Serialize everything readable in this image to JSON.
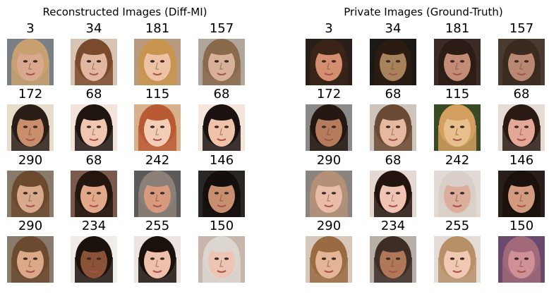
{
  "panels": [
    {
      "title": "Reconstructed Images (Diff-MI)",
      "grid": [
        [
          {
            "label": "3",
            "bg": "#7a7f86",
            "skin": "#d9a88e",
            "hair": "#c9a170"
          },
          {
            "label": "34",
            "bg": "#d8c4b4",
            "skin": "#e2b7a0",
            "hair": "#7a4a2c"
          },
          {
            "label": "181",
            "bg": "#b89a80",
            "skin": "#eec2a4",
            "hair": "#c8954f"
          },
          {
            "label": "157",
            "bg": "#b0a69c",
            "skin": "#d9b09a",
            "hair": "#8a6a4c"
          }
        ],
        [
          {
            "label": "172",
            "bg": "#e8dccd",
            "skin": "#c98f6c",
            "hair": "#2a1d16"
          },
          {
            "label": "68",
            "bg": "#f2e4da",
            "skin": "#f0c6b0",
            "hair": "#1e1410"
          },
          {
            "label": "115",
            "bg": "#d9b08c",
            "skin": "#f3cdb8",
            "hair": "#b85a34"
          },
          {
            "label": "68",
            "bg": "#f4e6dc",
            "skin": "#efc2aa",
            "hair": "#1a1210"
          }
        ],
        [
          {
            "label": "290",
            "bg": "#8a7a6c",
            "skin": "#d8a98a",
            "hair": "#6b4a30"
          },
          {
            "label": "68",
            "bg": "#7a5a4c",
            "skin": "#e2a88a",
            "hair": "#24160f"
          },
          {
            "label": "242",
            "bg": "#5c5a58",
            "skin": "#d89a7e",
            "hair": "#8a8078"
          },
          {
            "label": "146",
            "bg": "#2a2624",
            "skin": "#c88e70",
            "hair": "#140e0c"
          }
        ],
        [
          {
            "label": "290",
            "bg": "#8a7a6c",
            "skin": "#dba888",
            "hair": "#6b4a30"
          },
          {
            "label": "234",
            "bg": "#f0ece8",
            "skin": "#8a5236",
            "hair": "#1c120c"
          },
          {
            "label": "255",
            "bg": "#ece4e0",
            "skin": "#efc0ac",
            "hair": "#1a100c"
          },
          {
            "label": "150",
            "bg": "#c8b6ac",
            "skin": "#eec4b4",
            "hair": "#dcd6d0"
          }
        ]
      ]
    },
    {
      "title": "Private Images (Ground-Truth)",
      "grid": [
        [
          {
            "label": "3",
            "bg": "#2a1e18",
            "skin": "#d48e70",
            "hair": "#3a2418"
          },
          {
            "label": "34",
            "bg": "#1c1814",
            "skin": "#a8825a",
            "hair": "#2a1c12"
          },
          {
            "label": "181",
            "bg": "#3c2a24",
            "skin": "#c48c76",
            "hair": "#2c1c16"
          },
          {
            "label": "157",
            "bg": "#4a3a30",
            "skin": "#b88872",
            "hair": "#3a2a20"
          }
        ],
        [
          {
            "label": "172",
            "bg": "#8a8a8a",
            "skin": "#b47c5c",
            "hair": "#241810"
          },
          {
            "label": "68",
            "bg": "#cfc4bc",
            "skin": "#e6b8a0",
            "hair": "#6a4a34"
          },
          {
            "label": "115",
            "bg": "#3a4a24",
            "skin": "#e8c08e",
            "hair": "#d4a060"
          },
          {
            "label": "68",
            "bg": "#e6dcd6",
            "skin": "#e4a898",
            "hair": "#2a1a14"
          }
        ],
        [
          {
            "label": "290",
            "bg": "#8a8480",
            "skin": "#e8bca8",
            "hair": "#b49078"
          },
          {
            "label": "68",
            "bg": "#e4d8d0",
            "skin": "#f0c4b4",
            "hair": "#24140e"
          },
          {
            "label": "242",
            "bg": "#e2dad4",
            "skin": "#dcae9c",
            "hair": "#d8d0c8"
          },
          {
            "label": "146",
            "bg": "#2a1e1a",
            "skin": "#d29a7e",
            "hair": "#1a100c"
          }
        ],
        [
          {
            "label": "290",
            "bg": "#d8c8bc",
            "skin": "#e4b496",
            "hair": "#9a6a42"
          },
          {
            "label": "234",
            "bg": "#b8b0a8",
            "skin": "#b07858",
            "hair": "#3c2e26"
          },
          {
            "label": "255",
            "bg": "#e4dcd6",
            "skin": "#f0c8b4",
            "hair": "#b89068"
          },
          {
            "label": "150",
            "bg": "#6a4a6c",
            "skin": "#d09098",
            "hair": "#a06a7a"
          }
        ]
      ]
    }
  ]
}
